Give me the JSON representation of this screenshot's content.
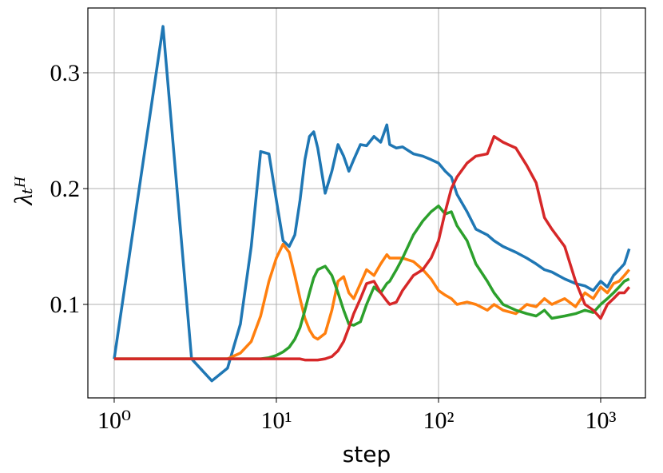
{
  "chart_data": {
    "type": "line",
    "xlabel": "step",
    "ylabel": "λₜᴴ",
    "xscale": "log",
    "grid": true,
    "xlim": [
      0.688,
      1888
    ],
    "ylim": [
      0.0193,
      0.3559
    ],
    "xticks": [
      {
        "value": 1,
        "label": "10⁰"
      },
      {
        "value": 10,
        "label": "10¹"
      },
      {
        "value": 100,
        "label": "10²"
      },
      {
        "value": 1000,
        "label": "10³"
      }
    ],
    "yticks": [
      0.1,
      0.2,
      0.3
    ],
    "x": [
      1,
      2,
      3,
      4,
      5,
      6,
      7,
      8,
      9,
      10,
      11,
      12,
      13,
      14,
      15,
      16,
      17,
      18,
      20,
      22,
      24,
      26,
      28,
      30,
      33,
      36,
      40,
      44,
      48,
      50,
      55,
      60,
      70,
      80,
      90,
      100,
      110,
      120,
      130,
      150,
      170,
      200,
      220,
      250,
      300,
      350,
      400,
      450,
      500,
      600,
      700,
      800,
      900,
      1000,
      1100,
      1200,
      1300,
      1400,
      1500
    ],
    "series": [
      {
        "color": "#1f77b4",
        "values": [
          0.053,
          0.34,
          0.053,
          0.034,
          0.045,
          0.083,
          0.15,
          0.232,
          0.23,
          0.19,
          0.155,
          0.15,
          0.16,
          0.19,
          0.225,
          0.245,
          0.249,
          0.235,
          0.196,
          0.215,
          0.238,
          0.228,
          0.215,
          0.225,
          0.238,
          0.237,
          0.245,
          0.24,
          0.255,
          0.238,
          0.235,
          0.236,
          0.23,
          0.228,
          0.225,
          0.222,
          0.215,
          0.21,
          0.195,
          0.18,
          0.165,
          0.16,
          0.155,
          0.15,
          0.145,
          0.14,
          0.135,
          0.13,
          0.128,
          0.122,
          0.118,
          0.116,
          0.112,
          0.12,
          0.115,
          0.125,
          0.13,
          0.135,
          0.148
        ]
      },
      {
        "color": "#ff7f0e",
        "values": [
          0.053,
          0.053,
          0.053,
          0.053,
          0.053,
          0.058,
          0.068,
          0.09,
          0.12,
          0.14,
          0.152,
          0.145,
          0.125,
          0.105,
          0.088,
          0.078,
          0.072,
          0.07,
          0.075,
          0.095,
          0.12,
          0.124,
          0.11,
          0.105,
          0.118,
          0.13,
          0.125,
          0.135,
          0.143,
          0.14,
          0.14,
          0.14,
          0.137,
          0.13,
          0.122,
          0.112,
          0.108,
          0.105,
          0.1,
          0.102,
          0.1,
          0.095,
          0.1,
          0.095,
          0.092,
          0.1,
          0.098,
          0.105,
          0.1,
          0.105,
          0.098,
          0.11,
          0.105,
          0.115,
          0.11,
          0.118,
          0.12,
          0.125,
          0.13
        ]
      },
      {
        "color": "#2ca02c",
        "values": [
          0.053,
          0.053,
          0.053,
          0.053,
          0.053,
          0.053,
          0.053,
          0.053,
          0.054,
          0.056,
          0.059,
          0.063,
          0.07,
          0.08,
          0.095,
          0.11,
          0.123,
          0.13,
          0.133,
          0.125,
          0.11,
          0.095,
          0.083,
          0.082,
          0.085,
          0.1,
          0.115,
          0.11,
          0.118,
          0.12,
          0.13,
          0.14,
          0.16,
          0.172,
          0.18,
          0.185,
          0.178,
          0.18,
          0.168,
          0.155,
          0.135,
          0.12,
          0.11,
          0.1,
          0.095,
          0.092,
          0.09,
          0.095,
          0.088,
          0.09,
          0.092,
          0.095,
          0.093,
          0.1,
          0.105,
          0.11,
          0.115,
          0.12,
          0.122
        ]
      },
      {
        "color": "#d62728",
        "values": [
          0.053,
          0.053,
          0.053,
          0.053,
          0.053,
          0.053,
          0.053,
          0.053,
          0.053,
          0.053,
          0.053,
          0.053,
          0.053,
          0.053,
          0.052,
          0.052,
          0.052,
          0.052,
          0.053,
          0.055,
          0.06,
          0.068,
          0.08,
          0.092,
          0.105,
          0.118,
          0.12,
          0.11,
          0.103,
          0.1,
          0.102,
          0.112,
          0.125,
          0.13,
          0.14,
          0.155,
          0.18,
          0.2,
          0.21,
          0.222,
          0.228,
          0.23,
          0.245,
          0.24,
          0.235,
          0.22,
          0.205,
          0.175,
          0.165,
          0.15,
          0.12,
          0.1,
          0.095,
          0.088,
          0.1,
          0.105,
          0.11,
          0.11,
          0.115
        ]
      }
    ]
  }
}
